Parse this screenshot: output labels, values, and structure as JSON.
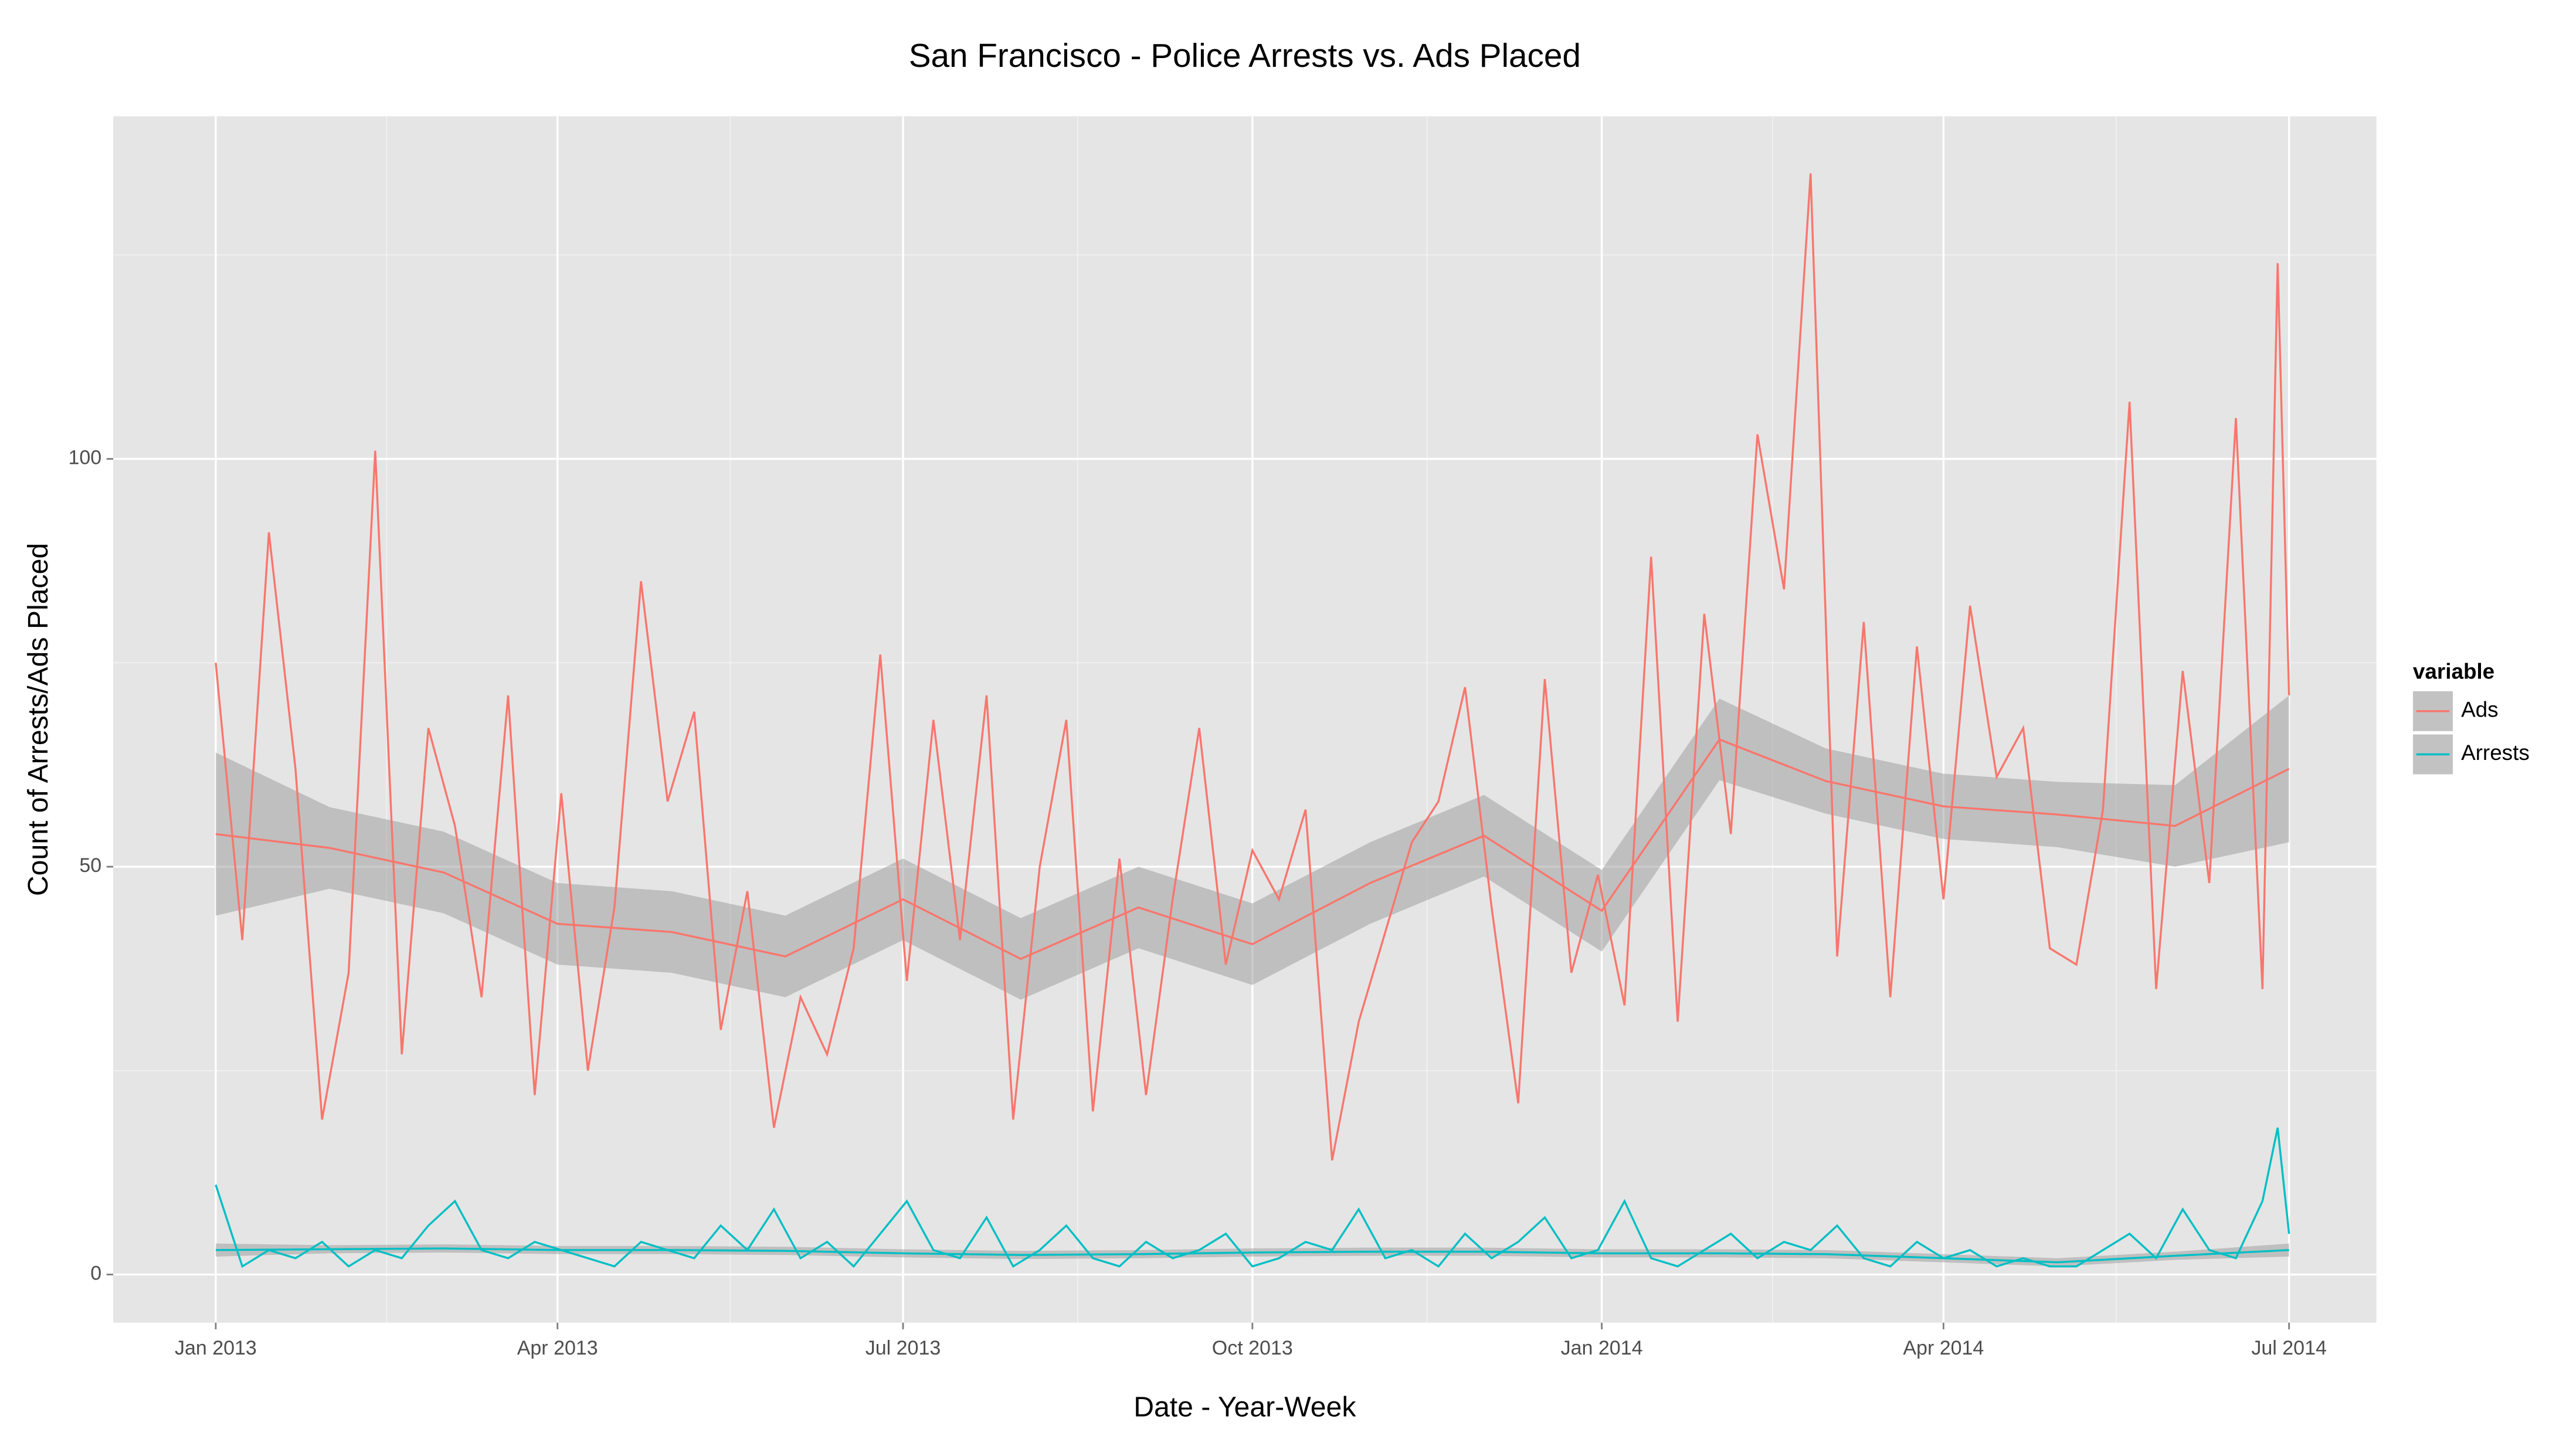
{
  "chart_data": {
    "type": "line",
    "title": "San Francisco - Police Arrests vs. Ads Placed",
    "x_label": "Date - Year-Week",
    "y_label": "Count of Arrests/Ads Placed",
    "legend_title": "variable",
    "legend_position": "right",
    "grid": true,
    "xlim": [
      -27,
      569
    ],
    "ylim": [
      -5.9,
      142
    ],
    "xticks": [
      {
        "value": 0,
        "label": "Jan 2013"
      },
      {
        "value": 90,
        "label": "Apr 2013"
      },
      {
        "value": 181,
        "label": "Jul 2013"
      },
      {
        "value": 273,
        "label": "Oct 2013"
      },
      {
        "value": 365,
        "label": "Jan 2014"
      },
      {
        "value": 455,
        "label": "Apr 2014"
      },
      {
        "value": 546,
        "label": "Jul 2014"
      }
    ],
    "yticks": [
      0,
      50,
      100
    ],
    "x": [
      0,
      7,
      14,
      21,
      28,
      35,
      42,
      49,
      56,
      63,
      70,
      77,
      84,
      91,
      98,
      105,
      112,
      119,
      126,
      133,
      140,
      147,
      154,
      161,
      168,
      175,
      182,
      189,
      196,
      203,
      210,
      217,
      224,
      231,
      238,
      245,
      252,
      259,
      266,
      273,
      280,
      287,
      294,
      301,
      308,
      315,
      322,
      329,
      336,
      343,
      350,
      357,
      364,
      371,
      378,
      385,
      392,
      399,
      406,
      413,
      420,
      427,
      434,
      441,
      448,
      455,
      462,
      469,
      476,
      483,
      490,
      497,
      504,
      511,
      518,
      525,
      532,
      539,
      543,
      546
    ],
    "series": [
      {
        "name": "Ads",
        "color": "#F8766D",
        "values": [
          75,
          41,
          91,
          62,
          19,
          37,
          101,
          27,
          67,
          55,
          34,
          71,
          22,
          59,
          25,
          45,
          85,
          58,
          69,
          30,
          47,
          18,
          34,
          27,
          40,
          76,
          36,
          68,
          41,
          71,
          19,
          50,
          68,
          20,
          51,
          22,
          46,
          67,
          38,
          52,
          46,
          57,
          14,
          31,
          42,
          53,
          58,
          72,
          45,
          21,
          73,
          37,
          49,
          33,
          88,
          31,
          81,
          54,
          103,
          84,
          135,
          39,
          80,
          34,
          77,
          46,
          82,
          61,
          67,
          40,
          38,
          57,
          107,
          35,
          74,
          48,
          105,
          35,
          124,
          71
        ],
        "smooth": [
          54,
          52.3,
          49.3,
          43,
          42,
          39,
          46,
          38.7,
          45,
          40.5,
          48,
          53.8,
          44.6,
          65.6,
          60.5,
          57.4,
          56.4,
          55,
          62
        ],
        "smooth_lo": [
          44,
          47.3,
          44.3,
          38,
          37,
          34,
          41,
          33.7,
          40,
          35.5,
          43,
          48.8,
          39.6,
          60.6,
          56.5,
          53.4,
          52.4,
          50,
          53
        ],
        "smooth_hi": [
          64,
          57.3,
          54.3,
          48,
          47,
          44,
          51,
          43.7,
          50,
          45.5,
          53,
          58.8,
          49.6,
          70.6,
          64.5,
          61.4,
          60.4,
          60,
          71
        ]
      },
      {
        "name": "Arrests",
        "color": "#00BFC4",
        "values": [
          11,
          1,
          3,
          2,
          4,
          1,
          3,
          2,
          6,
          9,
          3,
          2,
          4,
          3,
          2,
          1,
          4,
          3,
          2,
          6,
          3,
          8,
          2,
          4,
          1,
          5,
          9,
          3,
          2,
          7,
          1,
          3,
          6,
          2,
          1,
          4,
          2,
          3,
          5,
          1,
          2,
          4,
          3,
          8,
          2,
          3,
          1,
          5,
          2,
          4,
          7,
          2,
          3,
          9,
          2,
          1,
          3,
          5,
          2,
          4,
          3,
          6,
          2,
          1,
          4,
          2,
          3,
          1,
          2,
          1,
          1,
          3,
          5,
          2,
          8,
          3,
          2,
          9,
          18,
          5
        ],
        "smooth": [
          3,
          3.1,
          3.2,
          3,
          3,
          2.9,
          2.6,
          2.4,
          2.5,
          2.7,
          2.8,
          2.8,
          2.6,
          2.6,
          2.5,
          2,
          1.5,
          2.3,
          3
        ],
        "smooth_lo": [
          2.2,
          2.6,
          2.7,
          2.5,
          2.5,
          2.4,
          2.1,
          1.9,
          2,
          2.2,
          2.3,
          2.3,
          2.1,
          2.1,
          2,
          1.5,
          1,
          1.8,
          2.2
        ],
        "smooth_hi": [
          3.8,
          3.6,
          3.7,
          3.5,
          3.5,
          3.4,
          3.1,
          2.9,
          3,
          3.2,
          3.3,
          3.3,
          3.1,
          3.1,
          3,
          2.5,
          2,
          2.8,
          3.8
        ]
      }
    ],
    "smooth_x": [
      0,
      30,
      60,
      90,
      120,
      150,
      181,
      212,
      243,
      273,
      304,
      334,
      365,
      396,
      424,
      455,
      485,
      516,
      546
    ],
    "ribbon_color": "#999999"
  }
}
